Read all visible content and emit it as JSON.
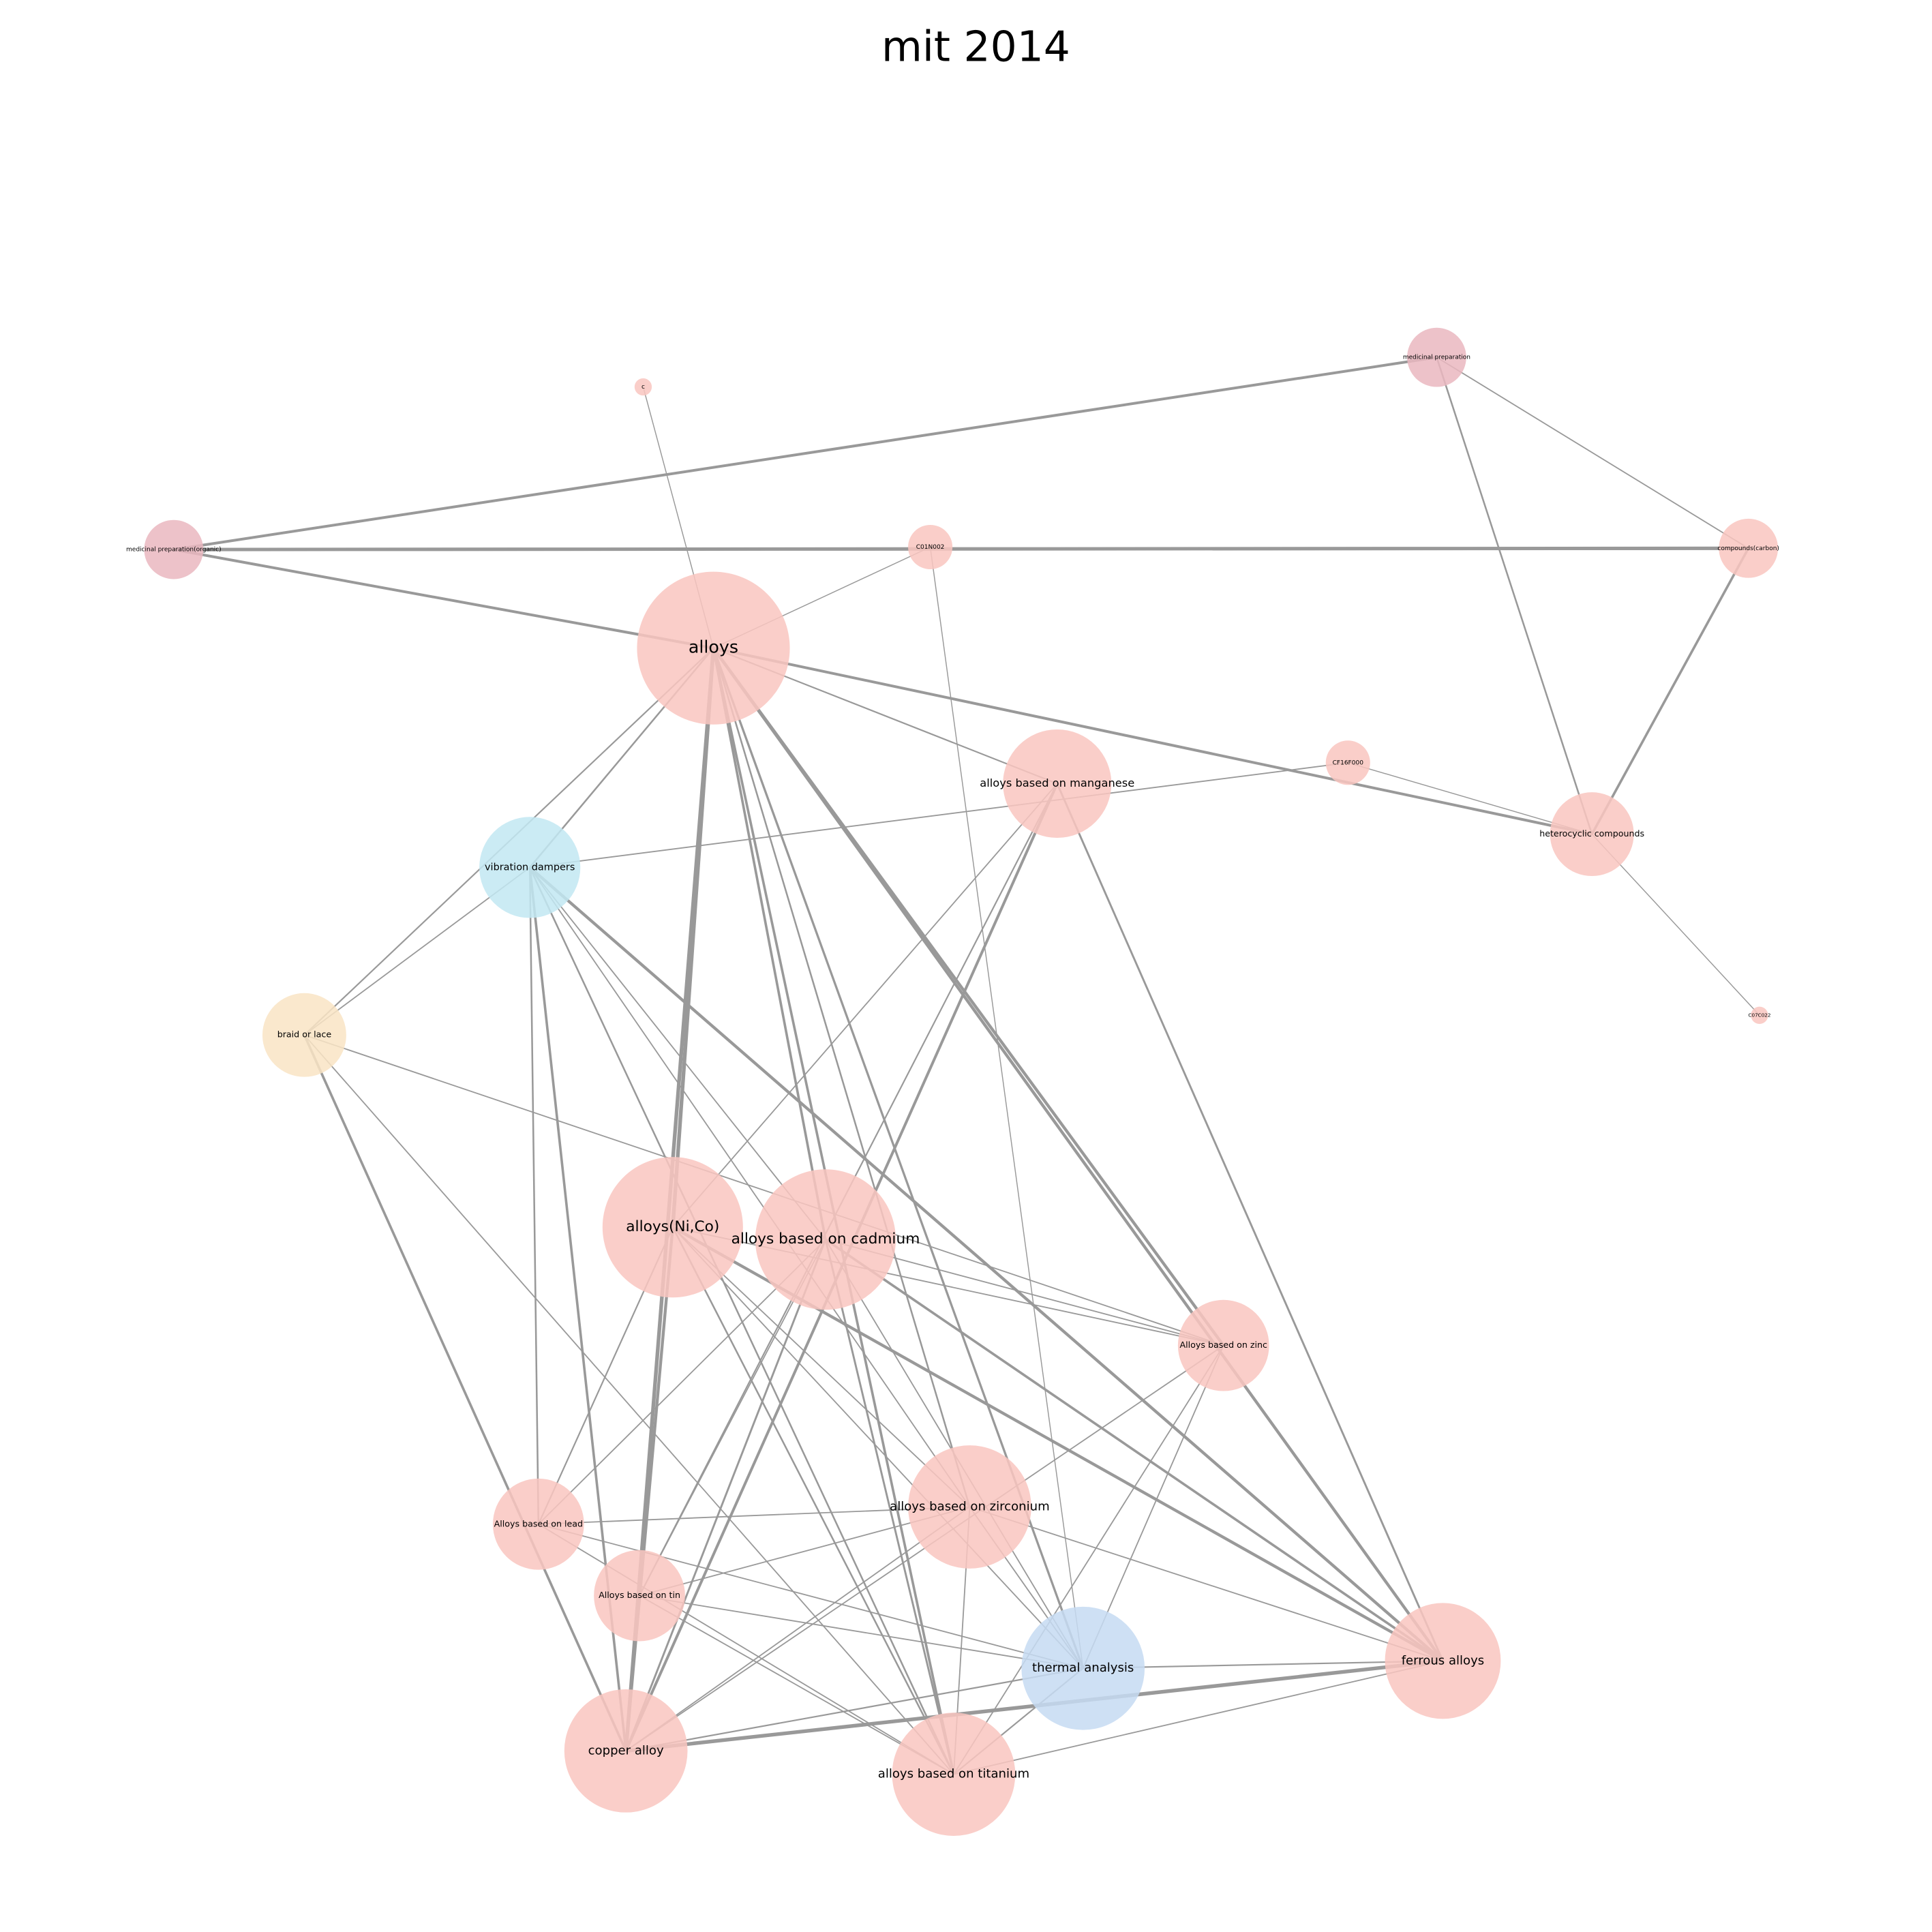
{
  "title": "mit 2014",
  "nodes": [
    {
      "label": "alloys"
    },
    {
      "label": "alloys based on manganese"
    },
    {
      "label": "vibration dampers"
    },
    {
      "label": "braid or lace"
    },
    {
      "label": "alloys(Ni,Co)"
    },
    {
      "label": "alloys based on cadmium"
    },
    {
      "label": "Alloys based on zinc"
    },
    {
      "label": "alloys based on zirconium"
    },
    {
      "label": "Alloys based on lead"
    },
    {
      "label": "Alloys based on tin"
    },
    {
      "label": "thermal analysis"
    },
    {
      "label": "ferrous alloys"
    },
    {
      "label": "copper alloy"
    },
    {
      "label": "alloys based on titanium"
    },
    {
      "label": "medicinal preparation(organic)"
    },
    {
      "label": "C01N002"
    },
    {
      "label": "c"
    },
    {
      "label": "medicinal preparation"
    },
    {
      "label": "compounds(carbon)"
    },
    {
      "label": "CF16F000"
    },
    {
      "label": "heterocyclic compounds"
    },
    {
      "label": "C07C022"
    }
  ]
}
